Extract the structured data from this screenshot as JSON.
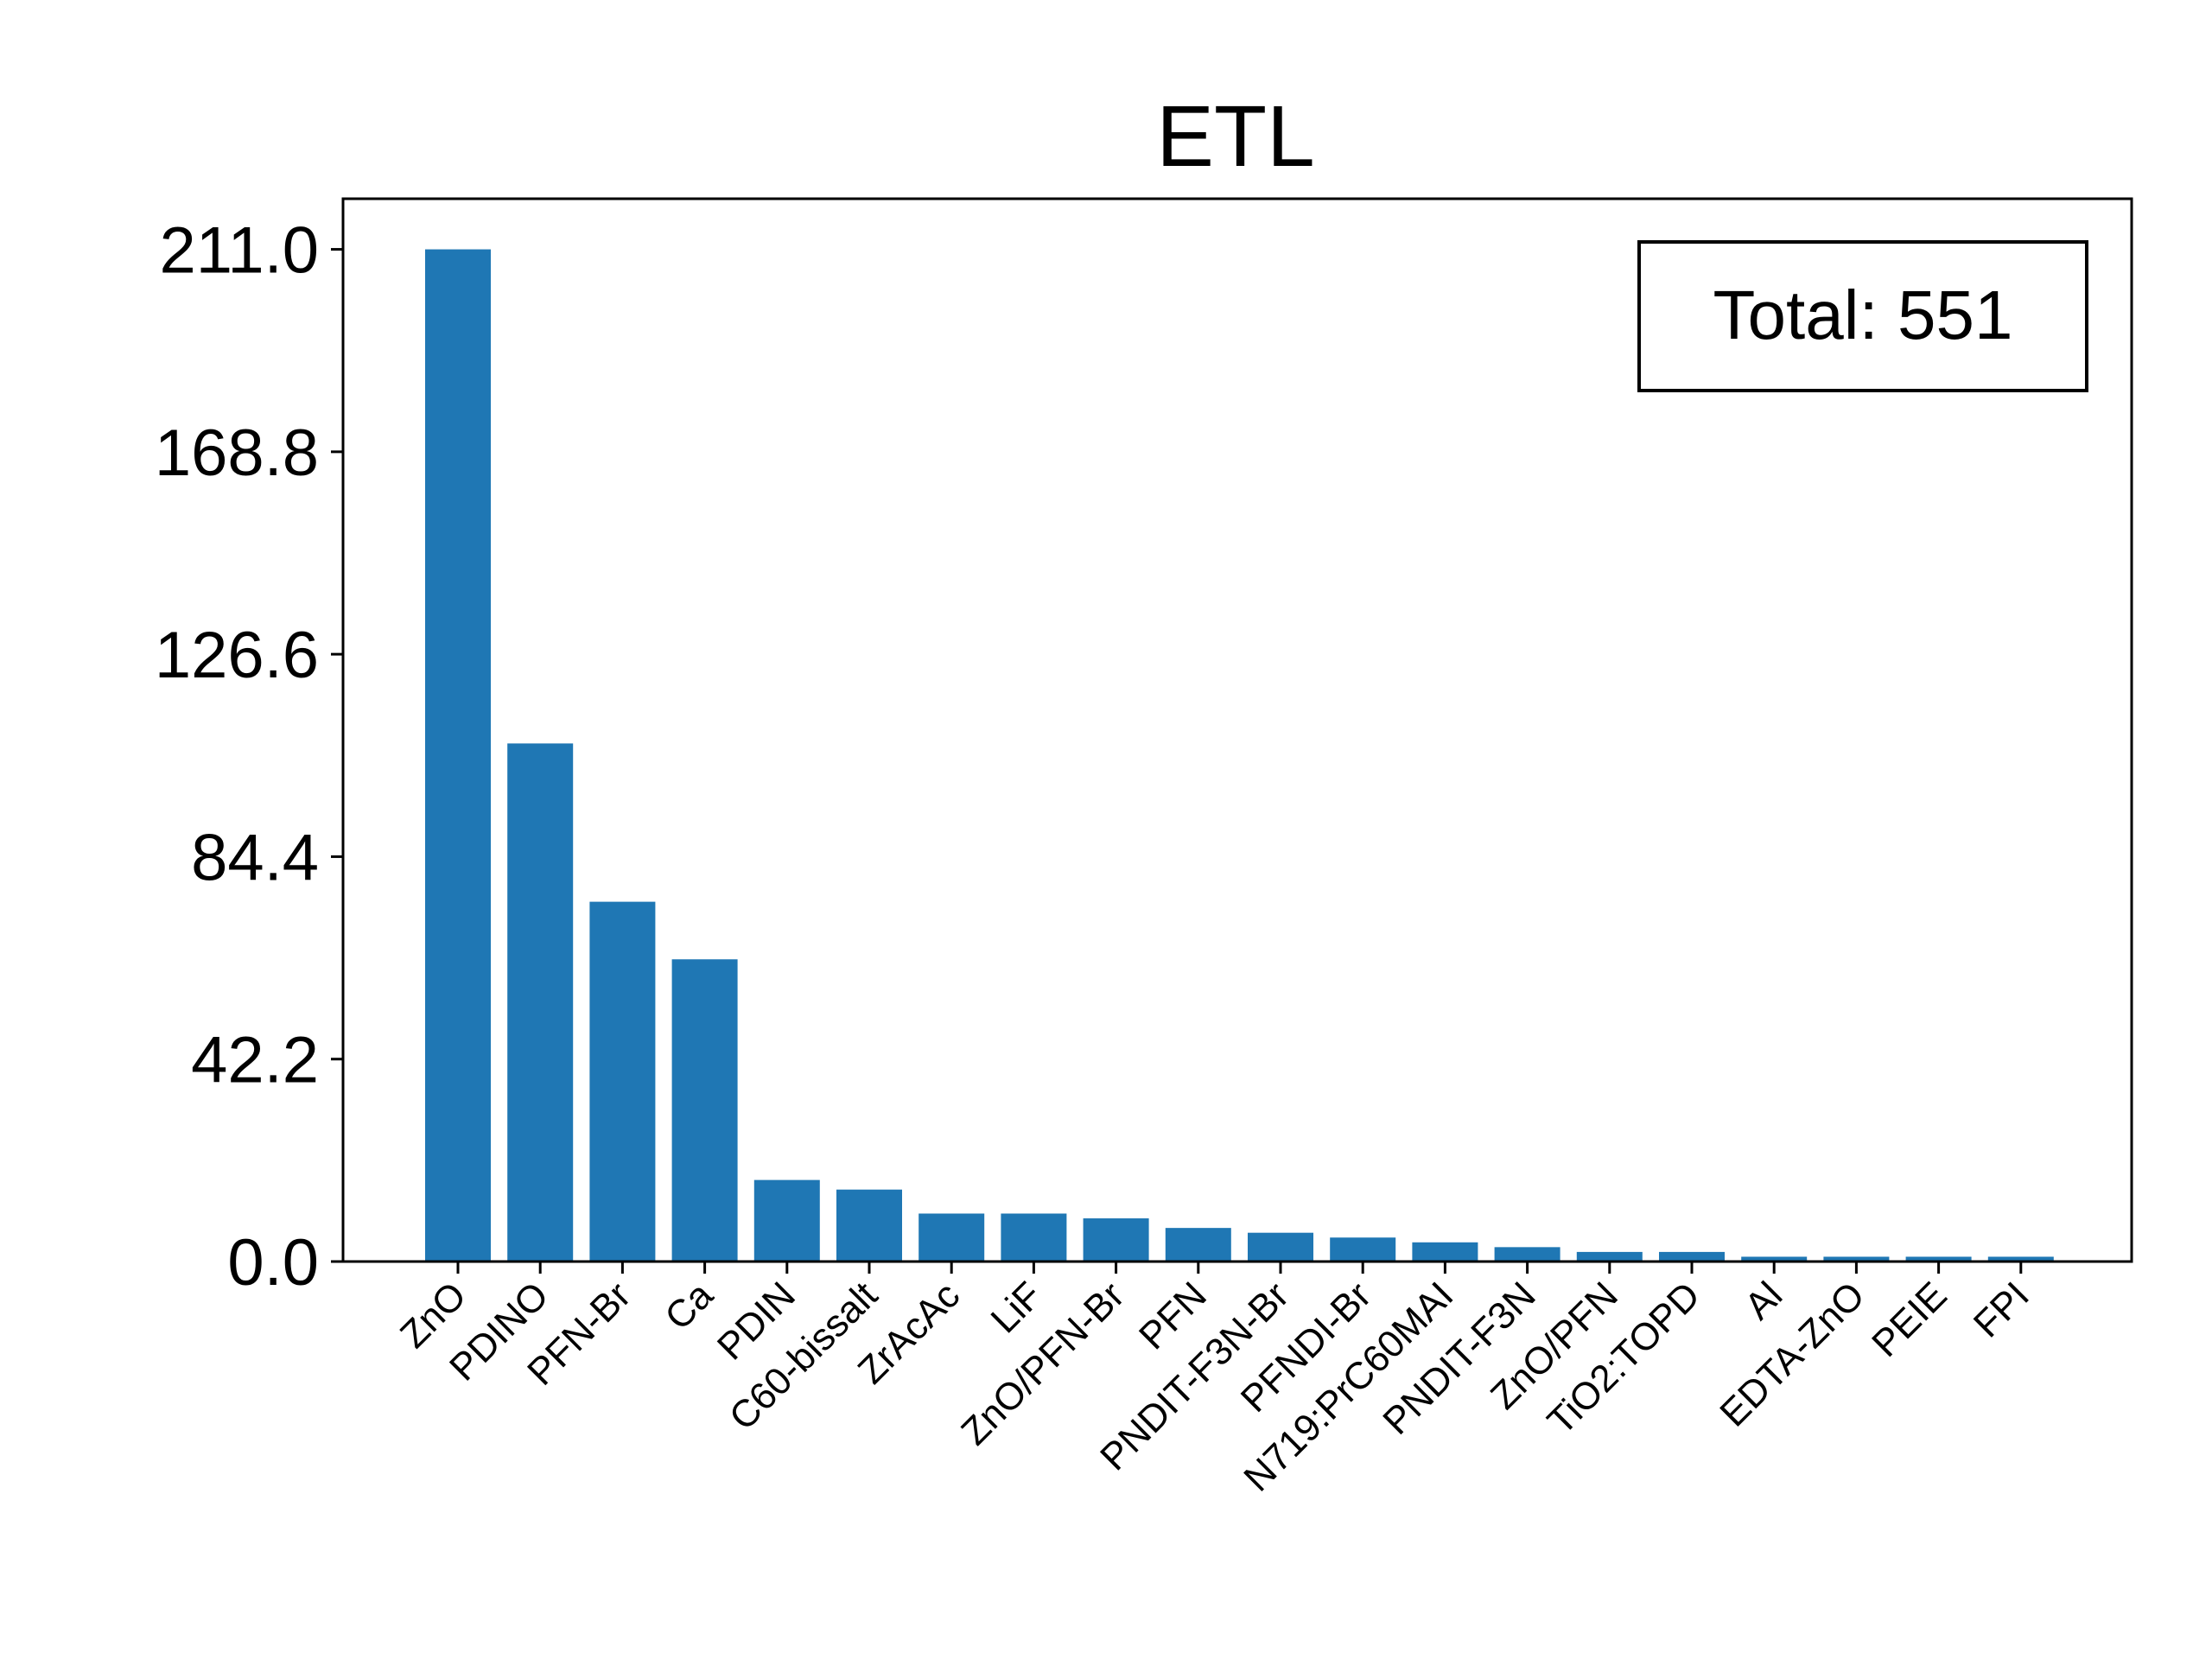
{
  "chart_data": {
    "type": "bar",
    "title": "ETL",
    "xlabel": "",
    "ylabel": "",
    "categories": [
      "ZnO",
      "PDINO",
      "PFN-Br",
      "Ca",
      "PDIN",
      "C60-bissalt",
      "ZrAcAc",
      "LiF",
      "ZnO/PFN-Br",
      "PFN",
      "PNDIT-F3N-Br",
      "PFNDI-Br",
      "N719:PrC60MAI",
      "PNDIT-F3N",
      "ZnO/PFN",
      "TiO2:TOPD",
      "Al",
      "EDTA-ZnO",
      "PEIE",
      "FPI"
    ],
    "values": [
      211,
      108,
      75,
      63,
      17,
      15,
      10,
      10,
      9,
      7,
      6,
      5,
      4,
      3,
      2,
      2,
      1,
      1,
      1,
      1
    ],
    "yticks": [
      "0.0",
      "42.2",
      "84.4",
      "126.6",
      "168.8",
      "211.0"
    ],
    "ylim": [
      0,
      221.55
    ],
    "bar_color": "#1f77b4",
    "grid": false,
    "annotation": "Total: 551",
    "annotation_position": "top-right"
  }
}
